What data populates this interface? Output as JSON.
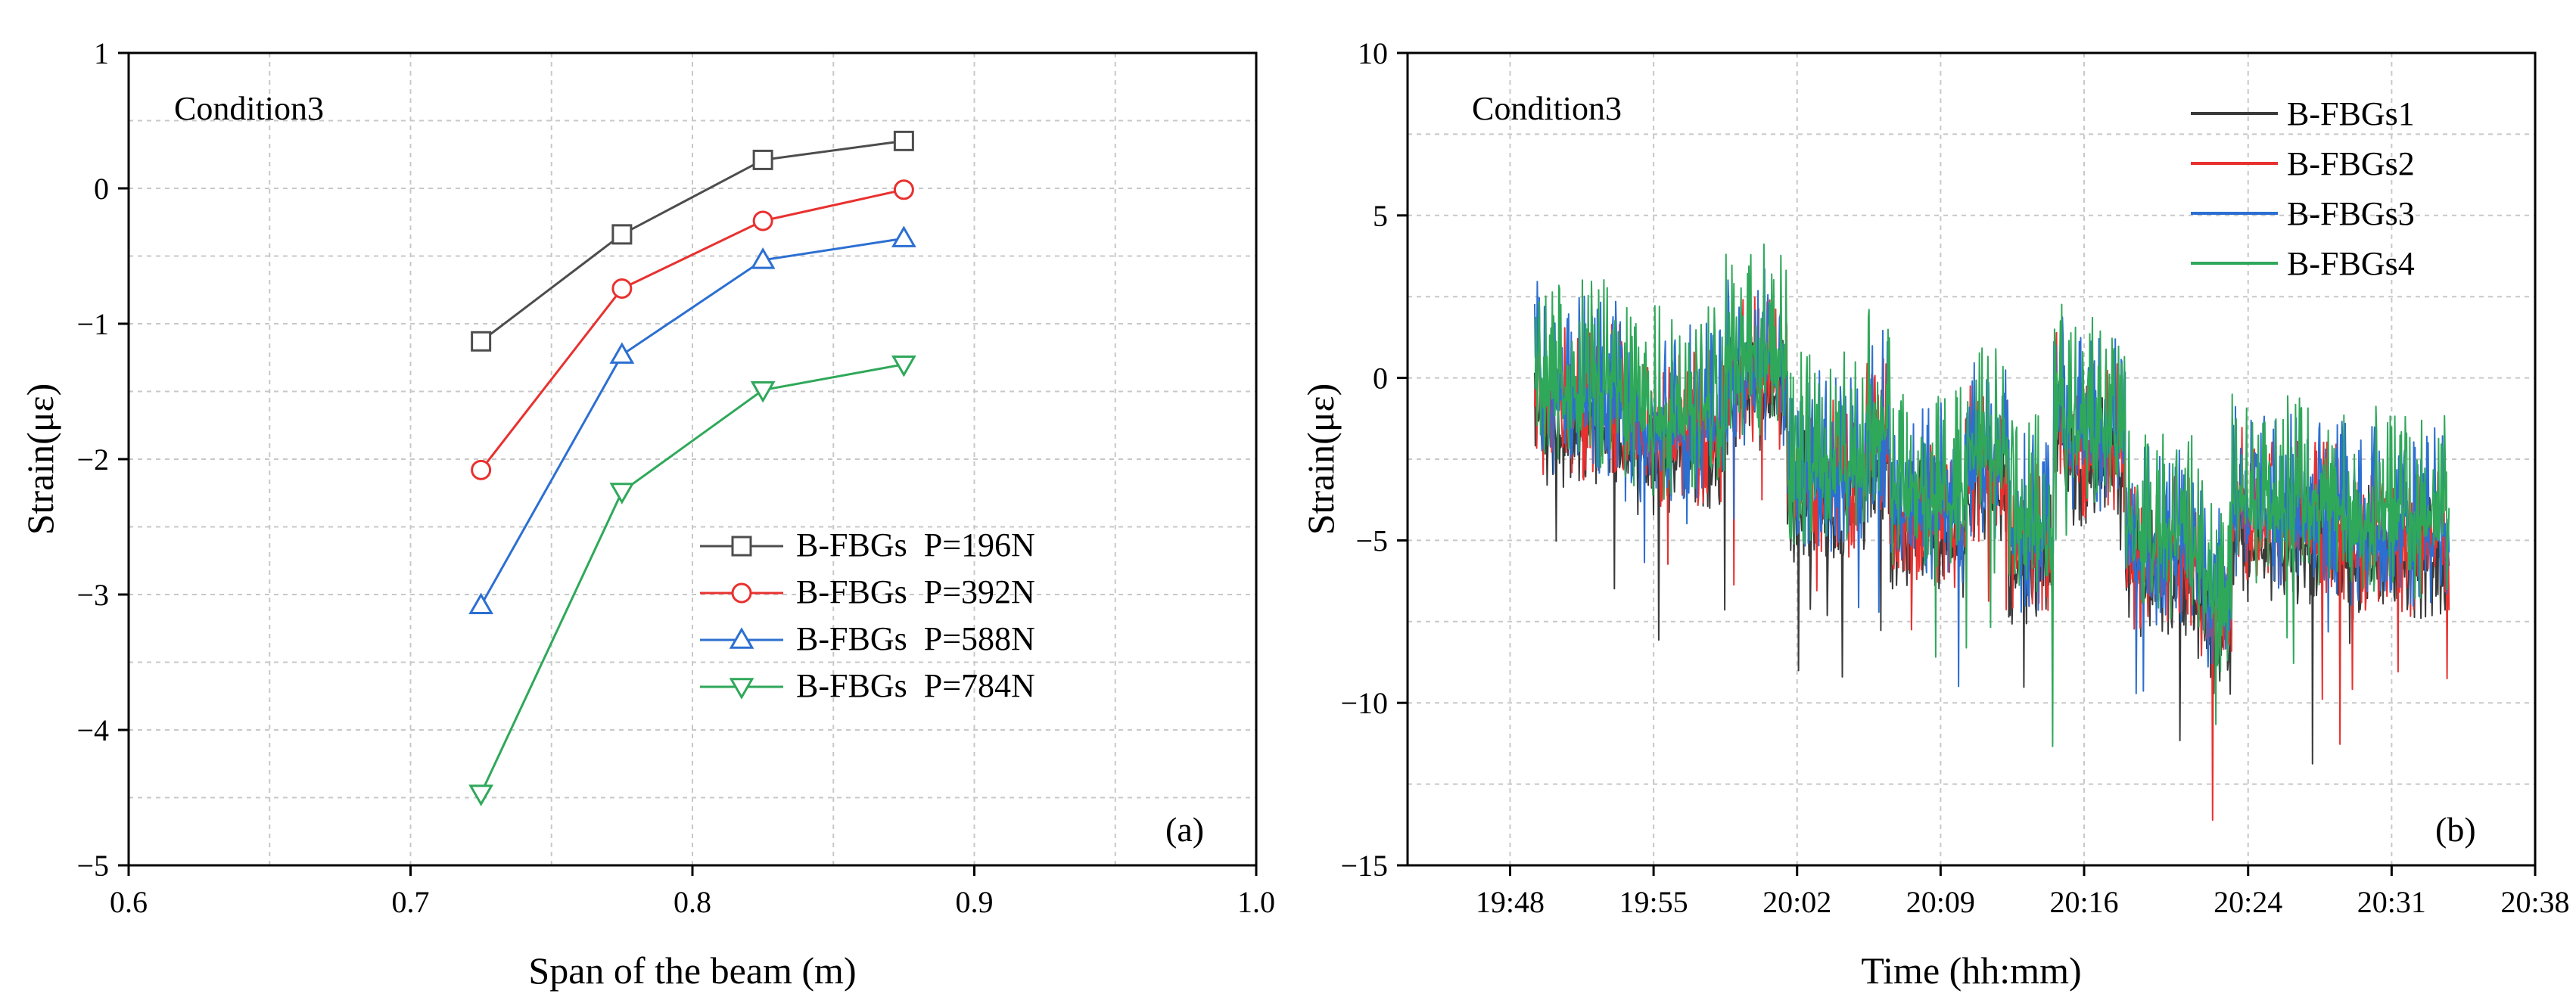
{
  "chart_data": [
    {
      "type": "line",
      "panel_label": "(a)",
      "annotation": "Condition3",
      "xlabel": "Span of the beam (m)",
      "ylabel": "Strain(με)",
      "xlim": [
        0.6,
        1.0
      ],
      "ylim": [
        -5,
        1
      ],
      "xticks": [
        "0.6",
        "0.7",
        "0.8",
        "0.9",
        "1.0"
      ],
      "yticks": [
        "1",
        "0",
        "−1",
        "−2",
        "−3",
        "−4",
        "−5"
      ],
      "grid": true,
      "legend_position": "lower-right",
      "x": [
        0.725,
        0.775,
        0.825,
        0.875
      ],
      "series": [
        {
          "name": "B-FBGs  P=196N",
          "color": "#4d4d4d",
          "marker": "square",
          "values": [
            -1.13,
            -0.34,
            0.21,
            0.35
          ]
        },
        {
          "name": "B-FBGs  P=392N",
          "color": "#e8312f",
          "marker": "circle",
          "values": [
            -2.08,
            -0.74,
            -0.24,
            -0.01
          ]
        },
        {
          "name": "B-FBGs  P=588N",
          "color": "#2c6fd1",
          "marker": "triangle-up",
          "values": [
            -3.08,
            -1.23,
            -0.53,
            -0.37
          ]
        },
        {
          "name": "B-FBGs  P=784N",
          "color": "#2fa85a",
          "marker": "triangle-down",
          "values": [
            -4.47,
            -2.24,
            -1.49,
            -1.3
          ]
        }
      ]
    },
    {
      "type": "line",
      "panel_label": "(b)",
      "annotation": "Condition3",
      "xlabel": "Time (hh:mm)",
      "ylabel": "Strain(με)",
      "xlim_minutes": [
        1183,
        1238
      ],
      "ylim": [
        -15,
        10
      ],
      "xticks": [
        "19:48",
        "19:55",
        "20:02",
        "20:09",
        "20:16",
        "20:24",
        "20:31",
        "20:38"
      ],
      "xtick_minutes": [
        1188,
        1195,
        1202,
        1209,
        1216,
        1224,
        1231,
        1238
      ],
      "yticks": [
        "10",
        "5",
        "0",
        "−5",
        "−10",
        "−15"
      ],
      "grid": true,
      "legend_position": "top-right",
      "segment_note": "approximate stepwise baseline levels (minutes since midnight, strain); high-frequency noise omitted",
      "segments": [
        [
          1189.5,
          0.3
        ],
        [
          1193.5,
          -0.6
        ],
        [
          1198.5,
          -1.4
        ],
        [
          1201.5,
          0.4
        ],
        [
          1205.3,
          -2.9
        ],
        [
          1206.5,
          -1.6
        ],
        [
          1209.5,
          -3.8
        ],
        [
          1210.2,
          -4.0
        ],
        [
          1212.3,
          -2.5
        ],
        [
          1214.5,
          -4.8
        ],
        [
          1215.0,
          -0.4
        ],
        [
          1218.0,
          -1.8
        ],
        [
          1221.5,
          -5.2
        ],
        [
          1222.0,
          -6.1
        ],
        [
          1223.2,
          -7.0
        ],
        [
          1223.8,
          -3.8
        ],
        [
          1229.0,
          -4.2
        ],
        [
          1233.8,
          -4.6
        ]
      ],
      "series": [
        {
          "name": "B-FBGs1",
          "color": "#3a3a3a",
          "offset": -1.3,
          "amplitude": 1.2
        },
        {
          "name": "B-FBGs2",
          "color": "#e8312f",
          "offset": -0.8,
          "amplitude": 1.4
        },
        {
          "name": "B-FBGs3",
          "color": "#2c6fd1",
          "offset": -0.4,
          "amplitude": 1.6
        },
        {
          "name": "B-FBGs4",
          "color": "#2fa85a",
          "offset": 0.0,
          "amplitude": 1.7
        }
      ]
    }
  ]
}
